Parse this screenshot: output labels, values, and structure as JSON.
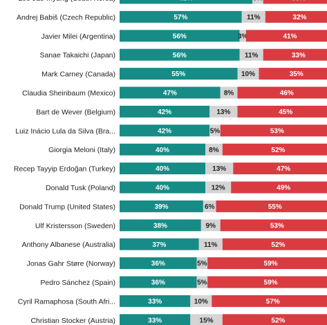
{
  "chart_data": {
    "type": "bar",
    "stacked": true,
    "orientation": "horizontal",
    "title": "",
    "xlabel": "",
    "ylabel": "",
    "xlim": [
      0,
      100
    ],
    "grid": false,
    "legend": "none",
    "colors": {
      "approve": "#178c86",
      "neutral": "#d4d4d4",
      "disapprove": "#d93b41"
    },
    "categories": [
      "Lee Jae-myung (South Korea)",
      "Andrej Babiš (Czech Republic)",
      "Javier Milei (Argentina)",
      "Sanae Takaichi (Japan)",
      "Mark Carney (Canada)",
      "Claudia Sheinbaum (Mexico)",
      "Bart de Wever (Belgium)",
      "Luiz Inácio Lula da Silva (Bra...",
      "Giorgia Meloni (Italy)",
      "Recep Tayyip Erdoğan (Turkey)",
      "Donald Tusk (Poland)",
      "Donald Trump (United States)",
      "Ulf Kristersson (Sweden)",
      "Anthony Albanese (Australia)",
      "Jonas Gahr Støre (Norway)",
      "Pedro Sánchez (Spain)",
      "Cyril Ramaphosa (South Afri...",
      "Christian Stocker (Austria)"
    ],
    "series": [
      {
        "key": "approve",
        "values": [
          62,
          57,
          56,
          56,
          55,
          47,
          42,
          42,
          40,
          40,
          40,
          39,
          38,
          37,
          36,
          36,
          33,
          33
        ]
      },
      {
        "key": "neutral",
        "values": [
          5,
          11,
          3,
          11,
          10,
          8,
          13,
          5,
          8,
          13,
          12,
          6,
          9,
          11,
          5,
          5,
          10,
          15
        ]
      },
      {
        "key": "disapprove",
        "values": [
          33,
          32,
          41,
          33,
          35,
          46,
          45,
          53,
          52,
          47,
          49,
          55,
          53,
          52,
          59,
          59,
          57,
          52
        ]
      }
    ]
  }
}
